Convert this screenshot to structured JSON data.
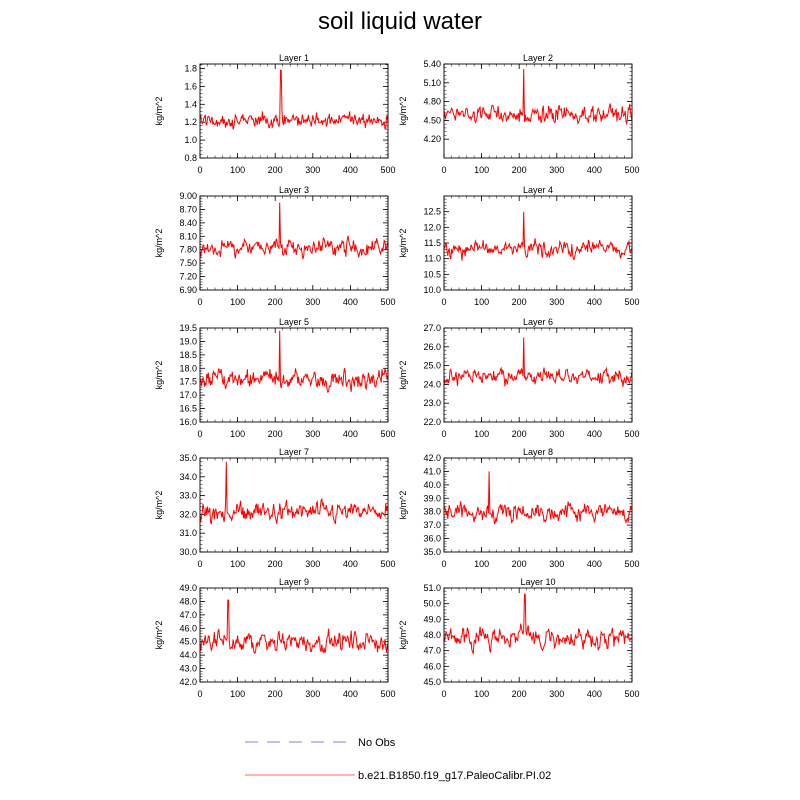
{
  "title": "soil liquid water",
  "legend": {
    "items": [
      {
        "label": "No Obs",
        "color": "#9999ee",
        "style": "dashed"
      },
      {
        "label": "b.e21.B1850.f19_g17.PaleoCalibr.PI.02",
        "color": "#ff4444",
        "style": "solid"
      }
    ]
  },
  "chart_data": [
    {
      "type": "line",
      "title": "Layer 1",
      "ylabel": "kg/m^2",
      "xlim": [
        0,
        500
      ],
      "ylim": [
        0.8,
        1.85
      ],
      "yticks": [
        "0.8",
        "1.0",
        "1.2",
        "1.4",
        "1.6",
        "1.8"
      ],
      "xticks": [
        "0",
        "100",
        "200",
        "300",
        "400",
        "500"
      ],
      "series": [
        {
          "color": "#ff0000",
          "mean": 1.22,
          "amp": 0.13,
          "peak": {
            "x": 215,
            "y": 1.78
          }
        }
      ]
    },
    {
      "type": "line",
      "title": "Layer 2",
      "ylabel": "kg/m^2",
      "xlim": [
        0,
        500
      ],
      "ylim": [
        3.9,
        5.4
      ],
      "yticks": [
        "4.20",
        "4.50",
        "4.80",
        "5.10",
        "5.40"
      ],
      "xticks": [
        "0",
        "100",
        "200",
        "300",
        "400",
        "500"
      ],
      "series": [
        {
          "color": "#ff0000",
          "mean": 4.6,
          "amp": 0.2,
          "peak": {
            "x": 212,
            "y": 5.32
          }
        }
      ]
    },
    {
      "type": "line",
      "title": "Layer 3",
      "ylabel": "kg/m^2",
      "xlim": [
        0,
        500
      ],
      "ylim": [
        6.9,
        9.0
      ],
      "yticks": [
        "6.90",
        "7.20",
        "7.50",
        "7.80",
        "8.10",
        "8.40",
        "8.70",
        "9.00"
      ],
      "xticks": [
        "0",
        "100",
        "200",
        "300",
        "400",
        "500"
      ],
      "series": [
        {
          "color": "#ff0000",
          "mean": 7.85,
          "amp": 0.3,
          "peak": {
            "x": 212,
            "y": 8.85
          }
        }
      ]
    },
    {
      "type": "line",
      "title": "Layer 4",
      "ylabel": "kg/m^2",
      "xlim": [
        0,
        500
      ],
      "ylim": [
        10.0,
        13.0
      ],
      "yticks": [
        "10.0",
        "10.5",
        "11.0",
        "11.5",
        "12.0",
        "12.5"
      ],
      "xticks": [
        "0",
        "100",
        "200",
        "300",
        "400",
        "500"
      ],
      "series": [
        {
          "color": "#ff0000",
          "mean": 11.3,
          "amp": 0.4,
          "peak": {
            "x": 212,
            "y": 12.5
          }
        }
      ]
    },
    {
      "type": "line",
      "title": "Layer 5",
      "ylabel": "kg/m^2",
      "xlim": [
        0,
        500
      ],
      "ylim": [
        16.0,
        19.5
      ],
      "yticks": [
        "16.0",
        "16.5",
        "17.0",
        "17.5",
        "18.0",
        "18.5",
        "19.0",
        "19.5"
      ],
      "xticks": [
        "0",
        "100",
        "200",
        "300",
        "400",
        "500"
      ],
      "series": [
        {
          "color": "#ff0000",
          "mean": 17.6,
          "amp": 0.55,
          "peak": {
            "x": 212,
            "y": 19.4
          }
        }
      ]
    },
    {
      "type": "line",
      "title": "Layer 6",
      "ylabel": "kg/m^2",
      "xlim": [
        0,
        500
      ],
      "ylim": [
        22.0,
        27.0
      ],
      "yticks": [
        "22.0",
        "23.0",
        "24.0",
        "25.0",
        "26.0",
        "27.0"
      ],
      "xticks": [
        "0",
        "100",
        "200",
        "300",
        "400",
        "500"
      ],
      "series": [
        {
          "color": "#ff0000",
          "mean": 24.4,
          "amp": 0.65,
          "peak": {
            "x": 212,
            "y": 26.5
          }
        }
      ]
    },
    {
      "type": "line",
      "title": "Layer 7",
      "ylabel": "kg/m^2",
      "xlim": [
        0,
        500
      ],
      "ylim": [
        30.0,
        35.0
      ],
      "yticks": [
        "30.0",
        "31.0",
        "32.0",
        "33.0",
        "34.0",
        "35.0"
      ],
      "xticks": [
        "0",
        "100",
        "200",
        "300",
        "400",
        "500"
      ],
      "series": [
        {
          "color": "#ff0000",
          "mean": 32.1,
          "amp": 0.8,
          "peak": {
            "x": 70,
            "y": 34.8
          }
        }
      ]
    },
    {
      "type": "line",
      "title": "Layer 8",
      "ylabel": "kg/m^2",
      "xlim": [
        0,
        500
      ],
      "ylim": [
        35.0,
        42.0
      ],
      "yticks": [
        "35.0",
        "36.0",
        "37.0",
        "38.0",
        "39.0",
        "40.0",
        "41.0",
        "42.0"
      ],
      "xticks": [
        "0",
        "100",
        "200",
        "300",
        "400",
        "500"
      ],
      "series": [
        {
          "color": "#ff0000",
          "mean": 38.0,
          "amp": 1.0,
          "peak": {
            "x": 120,
            "y": 41.0
          }
        }
      ]
    },
    {
      "type": "line",
      "title": "Layer 9",
      "ylabel": "kg/m^2",
      "xlim": [
        0,
        500
      ],
      "ylim": [
        42.0,
        49.0
      ],
      "yticks": [
        "42.0",
        "43.0",
        "44.0",
        "45.0",
        "46.0",
        "47.0",
        "48.0",
        "49.0"
      ],
      "xticks": [
        "0",
        "100",
        "200",
        "300",
        "400",
        "500"
      ],
      "series": [
        {
          "color": "#ff0000",
          "mean": 45.0,
          "amp": 1.1,
          "peak": {
            "x": 75,
            "y": 48.1
          }
        }
      ]
    },
    {
      "type": "line",
      "title": "Layer 10",
      "ylabel": "kg/m^2",
      "xlim": [
        0,
        500
      ],
      "ylim": [
        45.0,
        51.0
      ],
      "yticks": [
        "45.0",
        "46.0",
        "47.0",
        "48.0",
        "49.0",
        "50.0",
        "51.0"
      ],
      "xticks": [
        "0",
        "100",
        "200",
        "300",
        "400",
        "500"
      ],
      "series": [
        {
          "color": "#ff0000",
          "mean": 47.8,
          "amp": 0.9,
          "peak": {
            "x": 215,
            "y": 50.6
          }
        }
      ]
    }
  ]
}
